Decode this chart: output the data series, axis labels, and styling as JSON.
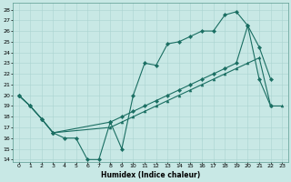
{
  "xlabel": "Humidex (Indice chaleur)",
  "bg_color": "#c8e8e5",
  "grid_color": "#b0d8d5",
  "line_color": "#1a6e62",
  "xlim": [
    -0.5,
    23.5
  ],
  "ylim": [
    13.8,
    28.6
  ],
  "yticks": [
    14,
    15,
    16,
    17,
    18,
    19,
    20,
    21,
    22,
    23,
    24,
    25,
    26,
    27,
    28
  ],
  "xticks": [
    0,
    1,
    2,
    3,
    4,
    5,
    6,
    7,
    8,
    9,
    10,
    11,
    12,
    13,
    14,
    15,
    16,
    17,
    18,
    19,
    20,
    21,
    22,
    23
  ],
  "line1_x": [
    0,
    1,
    2,
    3,
    4,
    5,
    6,
    7,
    8,
    9,
    10,
    11,
    12,
    13,
    14,
    15,
    16,
    17,
    18,
    19,
    20,
    21,
    22
  ],
  "line1_y": [
    20,
    19,
    17.8,
    16.5,
    16,
    16,
    14,
    14,
    17.5,
    15,
    20,
    23,
    22.8,
    24.8,
    25,
    25.5,
    26,
    26,
    27.5,
    27.8,
    26.5,
    21.5,
    19
  ],
  "line2_x": [
    0,
    1,
    2,
    3,
    8,
    9,
    10,
    11,
    12,
    13,
    14,
    15,
    16,
    17,
    18,
    19,
    20,
    21,
    22
  ],
  "line2_y": [
    20,
    19,
    17.8,
    16.5,
    17.5,
    18,
    18.5,
    19,
    19.5,
    20,
    20.5,
    21,
    21.5,
    22,
    22.5,
    23,
    26.5,
    24.5,
    21.5
  ],
  "line3_x": [
    0,
    1,
    2,
    3,
    8,
    9,
    10,
    11,
    12,
    13,
    14,
    15,
    16,
    17,
    18,
    19,
    20,
    21,
    22,
    23
  ],
  "line3_y": [
    20,
    19,
    17.8,
    16.5,
    17,
    17.5,
    18,
    18.5,
    19,
    19.5,
    20,
    20.5,
    21,
    21.5,
    22,
    22.5,
    23,
    23.5,
    19,
    19
  ]
}
